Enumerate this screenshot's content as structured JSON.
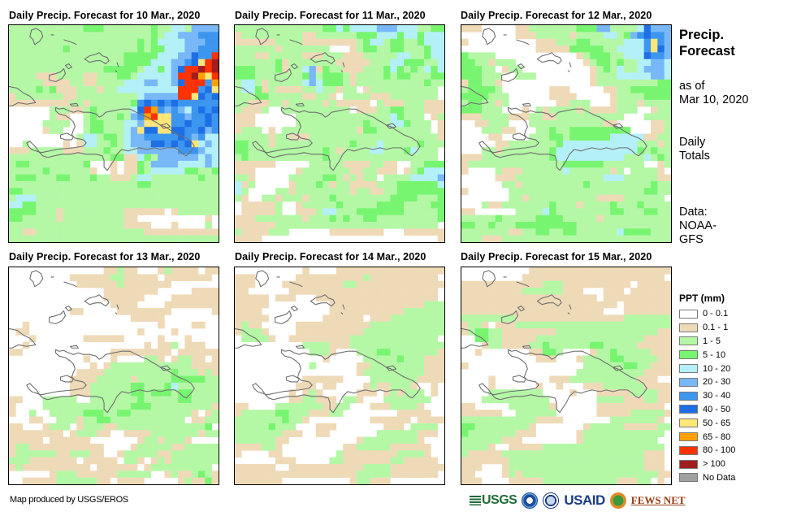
{
  "legend": {
    "title": "PPT (mm)",
    "classes": [
      {
        "code": "w",
        "label": "0 - 0.1",
        "color": "#ffffff"
      },
      {
        "code": "t",
        "label": "0.1 - 1",
        "color": "#efdab8"
      },
      {
        "code": "l",
        "label": "1 - 5",
        "color": "#b4f8a6"
      },
      {
        "code": "g",
        "label": "5 - 10",
        "color": "#78f570"
      },
      {
        "code": "c",
        "label": "10 - 20",
        "color": "#b4f0f8"
      },
      {
        "code": "b",
        "label": "20 - 30",
        "color": "#78b8f8"
      },
      {
        "code": "m",
        "label": "30 - 40",
        "color": "#3c96f0"
      },
      {
        "code": "d",
        "label": "40 - 50",
        "color": "#1e6ee6"
      },
      {
        "code": "y",
        "label": "50 - 65",
        "color": "#ffe678"
      },
      {
        "code": "o",
        "label": "65 - 80",
        "color": "#ffa000"
      },
      {
        "code": "r",
        "label": "80 - 100",
        "color": "#ff3200"
      },
      {
        "code": "x",
        "label": "> 100",
        "color": "#a01e1e"
      },
      {
        "code": "n",
        "label": "No Data",
        "color": "#a0a0a0"
      }
    ]
  },
  "sidebar": {
    "title_line1": "Precip.",
    "title_line2": "Forecast",
    "asof_line1": "as of",
    "asof_line2": "Mar 10, 2020",
    "totals_line1": "Daily",
    "totals_line2": "Totals",
    "data_line1": "Data:",
    "data_line2": "NOAA-",
    "data_line3": "GFS"
  },
  "footer": {
    "credit": "Map produced by USGS/EROS",
    "logos": {
      "usgs": "USGS",
      "usaid": "USAID",
      "fews": "FEWS NET"
    }
  },
  "chart_data": {
    "type": "heatmap",
    "title": "Daily Precip. Forecast",
    "units": "mm",
    "issued": "Mar 10, 2020",
    "source": "NOAA-GFS",
    "region": "Hispaniola (Haiti / Dominican Republic)",
    "grid_cols": 31,
    "grid_rows": 32,
    "panels": [
      {
        "title": "Daily Precip. Forecast for 10 Mar., 2020",
        "date": "10 Mar., 2020",
        "grid": [
          "lllllllllllggglllllllgllcclbbbb",
          "lllllllllllllllllllllglccbbbmmm",
          "lllllllllllllllllllglgccccbbbmm",
          "llllllllgllllllllllglggcccbbmmm",
          "lllllllllllllllllgggggcccbbdmmr",
          "lllllllllllllllllggggcccbbmdyrx",
          "llllllllllllllggggglccgcbdrrxrx",
          "lllltttllllttlllgglcccccbrrxoyr",
          "lllllttttllttllllcccbbccbdrrrmo",
          "llllglgtttllltllcccccccccrrrmdy",
          "tlllllllttlllllllllcbbbbbrrydmdo",
          "tttttttttlltllllllgmdmdmdmmmmmm",
          "wwwwwwlllttlglllllcdrombmbcmdmd",
          "wwwwwwlttwwlglllglbmoryymmbmmdm",
          "wwwwwllllwwlgglllccbyyyymmdmmdm",
          "wwwwwtllwwwlgglllcbyddyyddmmdbm",
          "wwwwwwwwwwlcclgglcbbmmmmmdmbmcc",
          "wwlwwwwwtwtccllglcbbbddmdmdycbc",
          "tttllllltttlllgllccbbbbbbmmmbcc",
          "lllllllllllllllggttcglbbbbbbcbcc",
          "lggllllllllgwwwtwttglbbbbccccbcc",
          "lllllglllllltwwtwttglcccccggllgg",
          "lggglllgglllglltttlcclllllllgllg",
          "lllllllllllllllllllggllllllllll",
          "ggllllllllllllllllllllllllllllll",
          "lccclllllllllllllllllllllllllll",
          "ccgglllllllllllllllllllllllllll",
          "ggggllltlllllllllttttttwtllllll",
          "ggllllltlllllllllttwwwwwwwwwwt",
          "lllllllllllllllllttttwwwtwwwwl",
          "llttllllllllllllllllttttttttttt",
          "lllllllllllllllllllllllllllllll"
        ]
      },
      {
        "title": "Daily Precip. Forecast for 11 Mar., 2020",
        "date": "11 Mar., 2020",
        "grid": [
          "lllllllllllllggcgccccbbbcccllgg",
          "tlllllllllttllllllgggcccgccgccc",
          "ttttttllllttttttttlgcclggllgccc",
          "lllllltlllllllwwwtlggllgglllgcc",
          "lllttllllltttllltttlllllccllgcc",
          "llllllgtllllllltttttlllccgggllc",
          "ggglllgtllcbtglltttlllgcglglcgc",
          "ggglllllllgblgggltllllglgglllgg",
          "lccltlllllcbcgggltllllllllllgll",
          "lccgtlttttllclltllwtllllllllll",
          "lllgglllllttlltwlllltttlllllllw",
          "lltttlltllllltltttttwltttlllttt",
          "ltttlwwllllllllllwtttllggllltttl",
          "tttwwwwwwllllllllllllllcglllwtl",
          "tttwwwwwwllllllllllglllccglllwtl",
          "tlllwtwllllllllllltggllllllllwt",
          "llllltlltttlllllllllllllllllllt",
          "ggllltlllllllllllglllclllllglll",
          "gglllllllllllgltllllcclllgclll",
          "lglllllllllllgllllllllllllllll",
          "ttttttwwwwwlllllttttllttwwllggg",
          "tttwwwwwwtlllllllttlltttwtlgccc",
          "lltwwwwwlllllggltltllwllllccccb",
          "ctlwwwwwtlllgltllttttlllggggggc",
          "clwwwwlltlllllllltllttllgggggggg",
          "ltwwlltllltlllgllllllllgggglllg",
          "wtttttlwwtlllllglllllggggllllgg",
          "wtttttlwwtttlcclllggggggglllllg",
          "tttllllllltlllglgllgglllllllllg",
          "ttttttllllllllllllllllllllllll",
          "lttttlllwwwwwwttttttttwwwtttttt",
          "ttttwwwwwwwwwwwwwwwwwwwwwwwwwwt"
        ]
      },
      {
        "title": "Daily Precip. Forecast for 12 Mar., 2020",
        "date": "12 Mar., 2020",
        "grid": [
          "tttwwwwwttlllllllgggbbllllcdbbb",
          "wwwwwwwwtttllllltllllcclgbmdmmb",
          "twwwwwwwwwwtttlllgglllllcccmymb",
          "wwwwwwwwwwwtttttgggggllccccmydb",
          "gllllwwwwwwwwwwwwtlgggllcccdmmb",
          "gglltlllwwwwwwwwwwtlgglgllccbbc",
          "gggllwtllwwwwwwwwwwtlglcllcbbbc",
          "ggglllwwlllwwwwwwwwtlllcccccbbc",
          "tgglltwwwwwwwwwwwwwtlllllllllggl",
          "lgggglwwwwwwwtttwwwwwttllgggggg",
          "gggglllwwwwwwttttwwwwwtllllgggg",
          "lgglltlwwwwwwwttlllwwwtllltllll",
          "ggglllwwwtwltlllltlttttlllwwtll",
          "tttlllltttllttllllllllllwwwllll",
          "wwttlllwwwlllllllllllttwwwwwttl",
          "wwwlllttwwwllgllgggggggggwwwttl",
          "wwwwttwwwwlllgglggggggcccccttll",
          "wwwwwttlllllllgcccccccccccllltll",
          "wwwlltlllllllgccccccccccccglgll",
          "tttllllllllllgcccccccccclllclgl",
          "tllllllllllllllggggggllllllwwtl",
          "twwwwltttllllllclllllltlwlllltwt",
          "wwwwwtttlllllllllllllcccllllltt",
          "wwwwwwlltlllllllllglllllllllgll",
          "twwwwwwllllllllllllllllllllgglll",
          "wwwwwwwlltllllllllllttttllllll",
          "wwwlttlllllllgllltllllglllglllll",
          "ttwwwwwwllllcgllllllllgglllgglll",
          "lllllglllllggggllllltllllllllll",
          "ggllglllgggggggggllllllllllllll",
          "lllllllttllggllggllllllcgggglll",
          "llltttllllllllllllllllllllllllll"
        ]
      },
      {
        "title": "Daily Precip. Forecast for 13 Mar., 2020",
        "date": "13 Mar., 2020",
        "grid": [
          "wwwwwwwwwwwwwwttlttwwwtlttttwtt",
          "wwwwwwwwwttttttlltttttwtttttttw",
          "wwwwwwwwwwttttttltttttttwwwwwww",
          "wwwwwwwwwwwwwwttttttttwwwwwtttt",
          "wwwwwwwwwwwwwwttttttwwwwttttttt",
          "wwwwwwwwwwwwwwwttttwwwwtttttttt",
          "wwwwwwwwwttwwwwwttttttttwwwwwwt",
          "wwwwwwwwwwwwwwwwwwtttttwwwwwwww",
          "wwtwwwwwwwwwwwwwwwwwwwtwwwwttww",
          "wttwwwwwwwwwwwwwwwwtwwwwtwwwwww",
          "wwwtwwwwwwwttttttwwwwwtwwwtwwww",
          "wwtwwwwwwwwwwwwwwwwwtwttlwtttww",
          "ttwwwwwwwwwwwwwtttttttttwtttttt",
          "wwwwwwwwwwwtwwwtwwwwlltwtllttwt",
          "wwwwwwwwwwwwtwtlllllllllllltttt",
          "wwwwwwwwwwttttllllllllllgllltlt",
          "wwwwwwwwwttttllllltlllllgggggllt",
          "wwwwwwwwwtttllllllgglllgclllllll",
          "wwwwwwwwwtttllllllgglggglgglllll",
          "ttwwwlllllwwlllllllglllllggllllt",
          "twwwwlllllllllllllggglllllllllt",
          "twwlwwlllllgggllggllllllllltwtl",
          "wwwttwwllltllgglllllllllllwttll",
          "ttwwwtlllwtlllttlllllllllllllg",
          "ttttttttwtlllttwwttttllllllltll",
          "tttttwttttttwwwwwwwtlltllltwww",
          "tlltttttttttttwwwwtlllllttlllll",
          "tllllllttlllttwwtlllllttlllllll",
          "llltttttttwtttttwlltwtltlllllll",
          "tlttttttttttwttttttwtlllllllll",
          "wwwwwwtlllttttttlllllwwtlttlglt",
          "wwtttttllllllttwttttwwwwwtlttgt"
        ]
      },
      {
        "title": "Daily Precip. Forecast for 14 Mar., 2020",
        "date": "14 Mar., 2020",
        "grid": [
          "wwwwwwwwwwtwwwwtttttttttttttttt",
          "tttwwwwwwttttttttttltttttttttt",
          "tttwwwwtttttttttllttttttttttttt",
          "ttwwwwwwtttttttttttttttttttttt",
          "tttttwtttwwwtttttttttttttttttt",
          "tttttwwwwwwwwwttttttttttttttllll",
          "ttttwwwwwwwwwwtttttttttttlllllll",
          "tttttwwwwwwwwttttttwtttlllllllll",
          "tlttwwwwwtttttttttttlllllllllll",
          "tllltwwwwttttttttttllllllllllll",
          "wlllltwwtttttttttlllllllllllll",
          "wwwwwwwwwwlllltttllllllllllllll",
          "wwwwwwwwwwwllltwwwlllggllllllltt",
          "wwwwwwwwwwwwwtwwwwwlllllgllltttt",
          "wwwwwwwwwwwlwwwwwwttlllllllltttt",
          "wwwwwwwwwwwwwwwwwwtlllllllllttt",
          "wwwwwwwwwwttttttwwwwllllllltttt",
          "wwwwwwwwwtttwttwwwwtlttllltwwt",
          "wwwwwwwwtwtltwwwwwtttwtltlllwt",
          "wwwwwwwwttlltttwlltwwwlllllllw",
          "ttwwwwlllllllttllwwwtttlllltww",
          "tlllllggllltttllwwwwwwwwtttttww",
          "lllllllglltwwwwwwwwwttttttwtttt",
          "lllllglllwwwtttwwwwwwwtttwllllw",
          "llllllltttwwttwwwwwwwlllllltttw",
          "llllllttwwwwwwwwwwtlllllllltww",
          "ttttlltwwwwwwwwwttlllllttttttw",
          "twwwwttwwwwwwwwlttttttttlllltww",
          "wwwwwwtttwwwwwlltttttttllttttt",
          "ttttttwwtttttttttttlllltttttttt",
          "ttttttttttttttttttlllllttttttt",
          "tttttttwwwwwwwwwwtlltttwwwwwwww"
        ]
      },
      {
        "title": "Daily Precip. Forecast for 15 Mar., 2020",
        "date": "15 Mar., 2020",
        "grid": [
          "wwwwwwwwwwttttttttttttttttttttt",
          "wwwwwwwwwtttttttttttttttttttttw",
          "ttttttttttttlllttttttttttwttttt",
          "tttttttttlllllltttwwwtttwtttttt",
          "ttttttttttttttttttttwtttttttttt",
          "tttttttttttttttttttttttwttttttt",
          "tttttttttttttttttttttwwwttttttt",
          "llllllllttttttttttttttttlllllll",
          "tlltwtttlllllllllllllllllllllll",
          "tlggllttttttttllllllllllllllltt",
          "wwgglltttttllllllllllllllllttttt",
          "wwwtllttttllgllllllgglllllttttt",
          "wwtwwwwwwwttgglwwwwtllglllllttt",
          "wwwwwwwwwwwtttwwwtllllgglllllttt",
          "twwwwwwwwwwwwwwwwwllllllgglltttt",
          "wwwwwwwwwwwwwwwwwlllllllllltttt",
          "wwwwtwwwwwwwwtttlllllllllltttw",
          "wwwwtwwwwwwtwwtwwwtttlllllltttt",
          "wwwwllllllllwwwwtwwwtttttlllltt",
          "wwwllllllllllwwwwwwwlllltttllttt",
          "ttwwwwwlllllltwwwwwwtttttttttt",
          "ttttttwwllllllwwwwwwtttttlllllttt",
          "lllllllllllttttwwwwwwwlllllllt",
          "gglllllllltwwwwwwwtllllltttttll",
          "gllllllltttwwwwwwtllllllllllll",
          "lllllltttwwwwwwwwtlllllllllll",
          "lllltwwtttttllllllllllllllllll",
          "ltttttlllllllllllllllllllllttt",
          "tttttttllllllllllllllllllllttt",
          "tttwwwtllllllllllllllllllllttt",
          "ttwwwwtltlllllllllllllllllllltt",
          "tttwwwwtttttllllllllllltttllwt"
        ]
      }
    ]
  }
}
